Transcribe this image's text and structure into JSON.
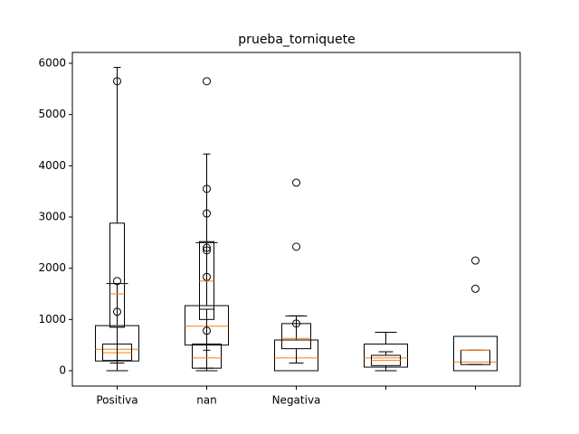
{
  "chart_data": {
    "type": "boxplot",
    "title": "prueba_torniquete",
    "categories": [
      "Positiva",
      "nan",
      "Negativa",
      null,
      null
    ],
    "box_color": "#000000",
    "median_color": "#ff7f0e",
    "ylim": [
      -300,
      6212
    ],
    "yticks": [
      0,
      1000,
      2000,
      3000,
      4000,
      5000,
      6000
    ],
    "grid": false,
    "groups": [
      {
        "boxes": [
          {
            "whislo": 0,
            "q1": 190,
            "med": 420,
            "q3": 880,
            "whishi": 1700,
            "fliers": []
          },
          {
            "whislo": 150,
            "q1": 200,
            "med": 350,
            "q3": 520,
            "whishi": 850,
            "fliers": [
              1150,
              1750
            ]
          },
          {
            "whislo": 200,
            "q1": 850,
            "med": 1500,
            "q3": 2880,
            "whishi": 5920,
            "fliers": [
              5650
            ]
          }
        ]
      },
      {
        "boxes": [
          {
            "whislo": 0,
            "q1": 500,
            "med": 870,
            "q3": 1270,
            "whishi": 2500,
            "fliers": [
              2350,
              3070,
              3550,
              5650
            ]
          },
          {
            "whislo": 50,
            "q1": 50,
            "med": 250,
            "q3": 520,
            "whishi": 1200,
            "fliers": [
              780,
              1830
            ]
          },
          {
            "whislo": 400,
            "q1": 1000,
            "med": 1750,
            "q3": 2520,
            "whishi": 4230,
            "fliers": [
              2400
            ]
          }
        ]
      },
      {
        "boxes": [
          {
            "whislo": 0,
            "q1": 0,
            "med": 250,
            "q3": 600,
            "whishi": 1070,
            "fliers": [
              2420,
              3670
            ]
          },
          {
            "whislo": 150,
            "q1": 430,
            "med": 630,
            "q3": 920,
            "whishi": 1070,
            "fliers": [
              920
            ]
          }
        ]
      },
      {
        "boxes": [
          {
            "whislo": 0,
            "q1": 70,
            "med": 250,
            "q3": 520,
            "whishi": 750,
            "fliers": []
          },
          {
            "whislo": 0,
            "q1": 100,
            "med": 200,
            "q3": 300,
            "whishi": 370,
            "fliers": []
          }
        ]
      },
      {
        "boxes": [
          {
            "whislo": 0,
            "q1": 0,
            "med": 170,
            "q3": 670,
            "whishi": 670,
            "fliers": [
              1600,
              2150
            ]
          },
          {
            "whislo": 120,
            "q1": 120,
            "med": 400,
            "q3": 400,
            "whishi": 400,
            "fliers": []
          }
        ]
      }
    ]
  }
}
